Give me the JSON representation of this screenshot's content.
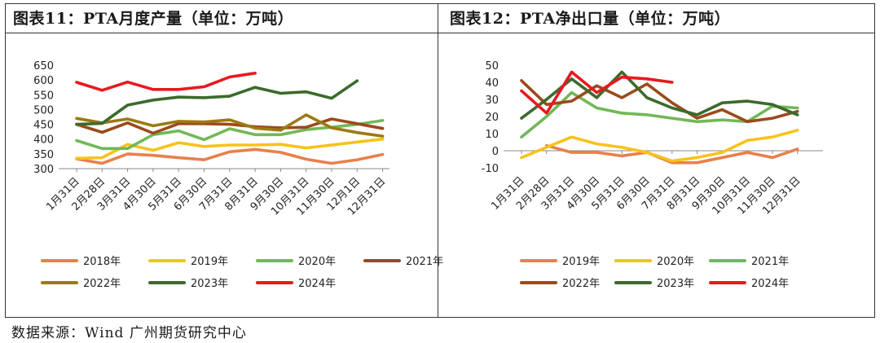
{
  "colors": {
    "2018": "#E8804B",
    "2019": "#F7C21B",
    "2020": "#72B857",
    "2021": "#9B4A1C",
    "2022": "#9C7A12",
    "2023": "#3C6A2C",
    "2024": "#E8191F"
  },
  "source": "数据来源：Wind  广州期货研究中心",
  "chart_data": [
    {
      "type": "line",
      "title": "图表11：PTA月度产量（单位：万吨）",
      "categories": [
        "1月31日",
        "2月28日",
        "3月31日",
        "4月30日",
        "5月31日",
        "6月30日",
        "7月31日",
        "8月31日",
        "9月30日",
        "10月31日",
        "11月30日",
        "12月1日",
        "12月31日"
      ],
      "ylim": [
        300,
        650
      ],
      "yticks": [
        300,
        350,
        400,
        450,
        500,
        550,
        600,
        650
      ],
      "series": [
        {
          "name": "2018年",
          "color_key": "2018",
          "values": [
            333,
            318,
            350,
            345,
            337,
            330,
            357,
            365,
            355,
            332,
            318,
            330,
            348
          ]
        },
        {
          "name": "2019年",
          "color_key": "2019",
          "values": [
            335,
            337,
            382,
            362,
            388,
            375,
            380,
            380,
            382,
            370,
            380,
            390,
            400
          ]
        },
        {
          "name": "2020年",
          "color_key": "2020",
          "values": [
            395,
            368,
            368,
            415,
            428,
            398,
            435,
            415,
            415,
            432,
            440,
            450,
            463
          ]
        },
        {
          "name": "2021年",
          "color_key": "2021",
          "values": [
            450,
            423,
            455,
            420,
            452,
            452,
            450,
            442,
            438,
            440,
            468,
            452,
            436
          ]
        },
        {
          "name": "2022年",
          "color_key": "2022",
          "values": [
            470,
            455,
            468,
            445,
            460,
            458,
            465,
            437,
            430,
            482,
            438,
            422,
            410
          ]
        },
        {
          "name": "2023年",
          "color_key": "2023",
          "values": [
            450,
            453,
            515,
            532,
            542,
            540,
            545,
            575,
            555,
            560,
            538,
            597,
            null
          ]
        },
        {
          "name": "2024年",
          "color_key": "2024",
          "values": [
            592,
            565,
            593,
            568,
            568,
            577,
            610,
            623,
            null,
            null,
            null,
            null,
            null
          ]
        }
      ]
    },
    {
      "type": "line",
      "title": "图表12：PTA净出口量（单位：万吨）",
      "categories": [
        "1月31日",
        "2月28日",
        "3月31日",
        "4月30日",
        "5月31日",
        "6月30日",
        "7月31日",
        "8月31日",
        "9月30日",
        "10月31日",
        "11月30日",
        "12月31日"
      ],
      "ylim": [
        -10,
        50
      ],
      "yticks": [
        -10,
        0,
        10,
        20,
        30,
        40,
        50
      ],
      "series": [
        {
          "name": "2019年",
          "color_key": "2018",
          "values": [
            null,
            3,
            -1,
            -1,
            -3,
            -1,
            -7,
            -7,
            -4,
            -1,
            -4,
            1
          ]
        },
        {
          "name": "2020年",
          "color_key": "2019",
          "values": [
            -4,
            2,
            8,
            4,
            2,
            -1,
            -6,
            -4,
            -1,
            6,
            8,
            12
          ]
        },
        {
          "name": "2021年",
          "color_key": "2020",
          "values": [
            8,
            20,
            34,
            25,
            22,
            21,
            19,
            17,
            18,
            17,
            26,
            25
          ]
        },
        {
          "name": "2022年",
          "color_key": "2021",
          "values": [
            41,
            27,
            29,
            38,
            31,
            39,
            28,
            19,
            24,
            17,
            19,
            23
          ]
        },
        {
          "name": "2023年",
          "color_key": "2023",
          "values": [
            19,
            30,
            42,
            31,
            46,
            31,
            25,
            21,
            28,
            29,
            27,
            21
          ]
        },
        {
          "name": "2024年",
          "color_key": "2024",
          "values": [
            35,
            22,
            46,
            34,
            43,
            42,
            40,
            null,
            null,
            null,
            null,
            null
          ]
        }
      ]
    }
  ],
  "legends": [
    {
      "rows": [
        [
          "2018年",
          "2019年",
          "2020年",
          "2021年"
        ],
        [
          "2022年",
          "2023年",
          "2024年"
        ]
      ],
      "keys": [
        [
          "2018",
          "2019",
          "2020",
          "2021"
        ],
        [
          "2022",
          "2023",
          "2024"
        ]
      ]
    },
    {
      "rows": [
        [
          "2019年",
          "2020年",
          "2021年"
        ],
        [
          "2022年",
          "2023年",
          "2024年"
        ]
      ],
      "keys": [
        [
          "2018",
          "2019",
          "2020"
        ],
        [
          "2021",
          "2023",
          "2024"
        ]
      ]
    }
  ]
}
